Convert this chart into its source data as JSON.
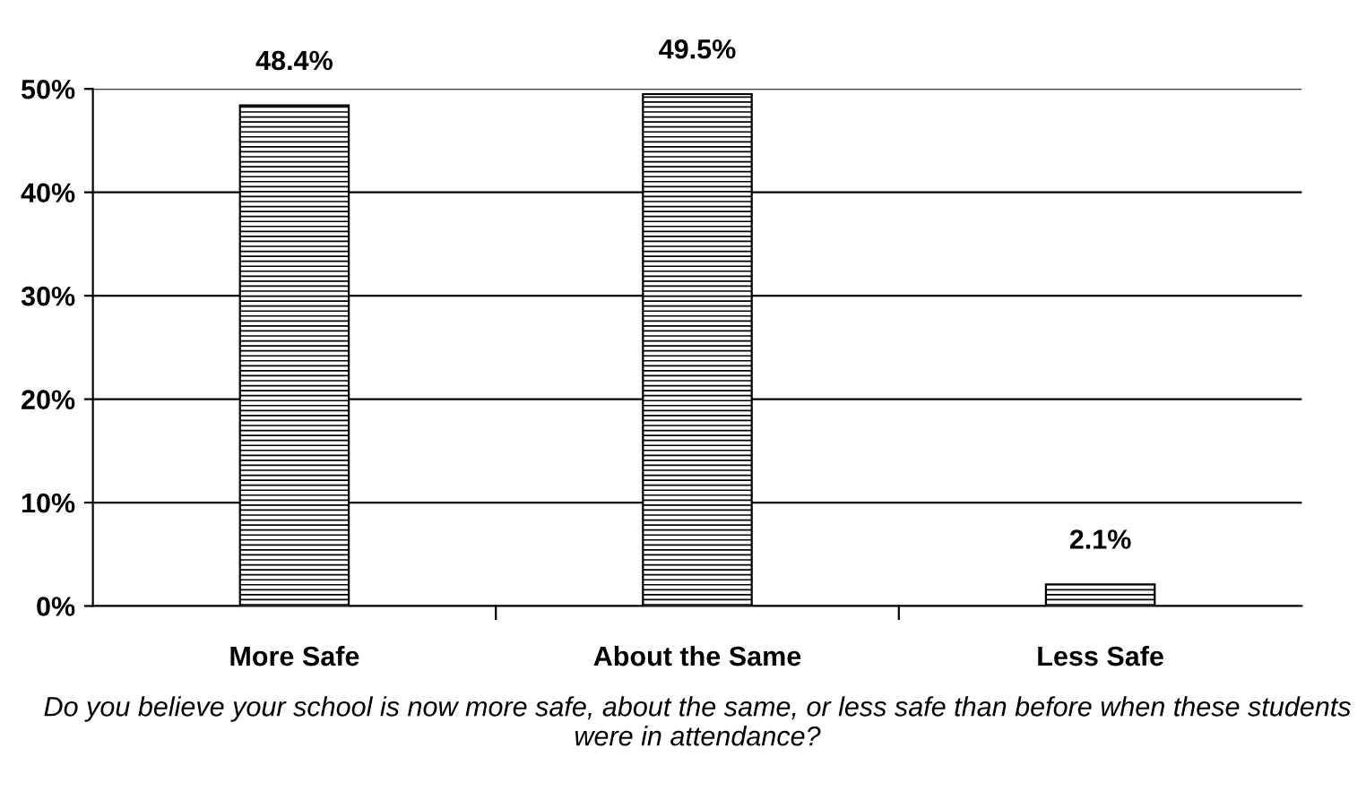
{
  "chart_data": {
    "type": "bar",
    "xlabel": "Do you believe your school is now more safe, about the same, or less safe than before when these students were in attendance?",
    "categories": [
      "More Safe",
      "About the Same",
      "Less Safe"
    ],
    "values": [
      48.4,
      49.5,
      2.1
    ],
    "value_labels": [
      "48.4%",
      "49.5%",
      "2.1%"
    ],
    "color": "#000000",
    "ylim": [
      0,
      50
    ],
    "yticks": [
      {
        "value": 0,
        "label": "0%"
      },
      {
        "value": 10,
        "label": "10%"
      },
      {
        "value": 20,
        "label": "20%"
      },
      {
        "value": 30,
        "label": "30%"
      },
      {
        "value": 40,
        "label": "40%"
      },
      {
        "value": 50,
        "label": "50%"
      }
    ],
    "grid": "y",
    "legend": false
  }
}
